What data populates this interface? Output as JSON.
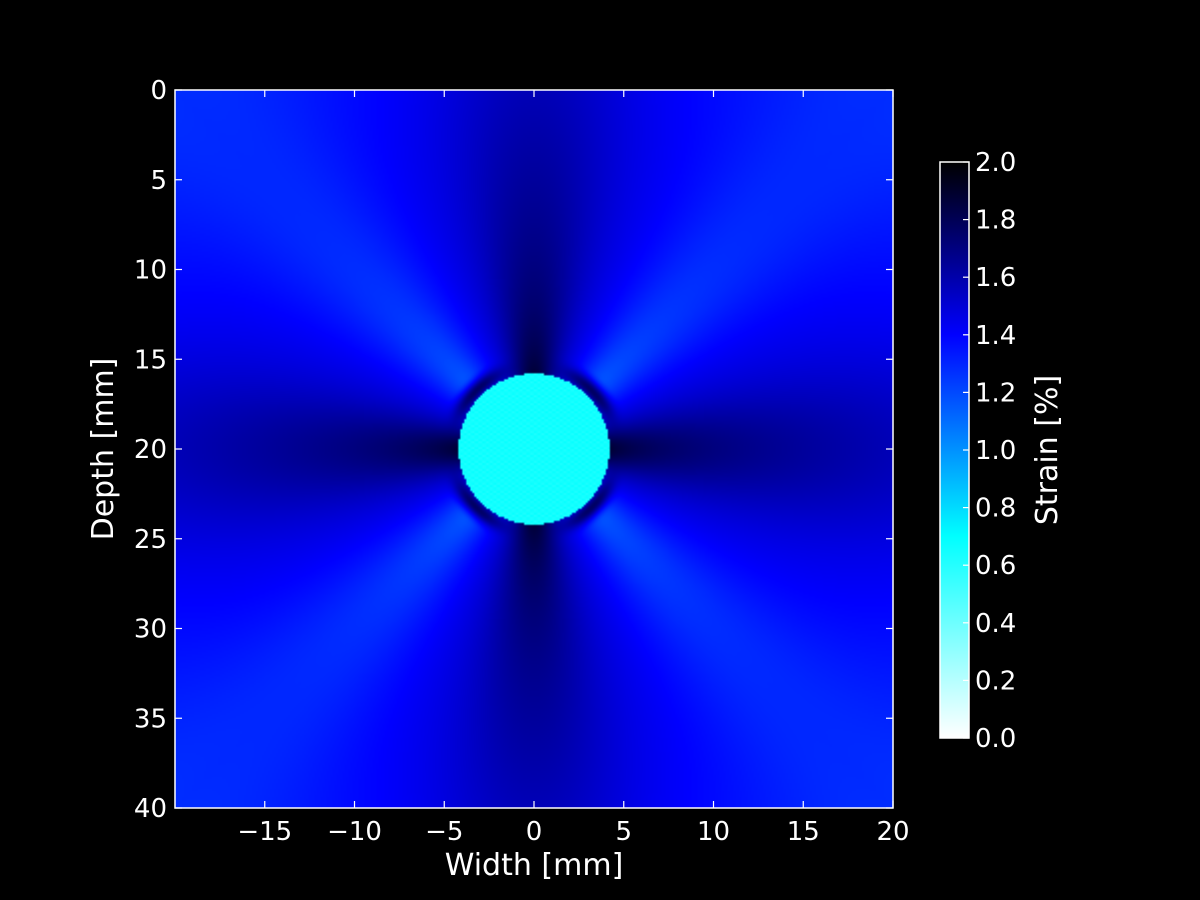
{
  "chart_data": {
    "type": "heatmap",
    "title": "",
    "xlabel": "Width [mm]",
    "ylabel": "Depth [mm]",
    "xlim": [
      -20,
      20
    ],
    "ylim": [
      40,
      0
    ],
    "y_axis_inverted": true,
    "x_ticks": [
      -15,
      -10,
      -5,
      0,
      5,
      10,
      15,
      20
    ],
    "x_tick_labels": [
      "−15",
      "−10",
      "−5",
      "0",
      "5",
      "10",
      "15",
      "20"
    ],
    "y_ticks": [
      0,
      5,
      10,
      15,
      20,
      25,
      30,
      35,
      40
    ],
    "y_tick_labels": [
      "0",
      "5",
      "10",
      "15",
      "20",
      "25",
      "30",
      "35",
      "40"
    ],
    "grid": false,
    "colorbar": {
      "label": "Strain [%]",
      "range": [
        0.0,
        2.0
      ],
      "ticks": [
        0.0,
        0.2,
        0.4,
        0.6,
        0.8,
        1.0,
        1.2,
        1.4,
        1.6,
        1.8,
        2.0
      ],
      "tick_labels": [
        "0.0",
        "0.2",
        "0.4",
        "0.6",
        "0.8",
        "1.0",
        "1.2",
        "1.4",
        "1.6",
        "1.8",
        "2.0"
      ],
      "placement": "right",
      "colormap": [
        {
          "value": 0.0,
          "color": "#ffffff"
        },
        {
          "value": 0.7,
          "color": "#00ffff"
        },
        {
          "value": 1.4,
          "color": "#0000ff"
        },
        {
          "value": 2.0,
          "color": "#000000"
        }
      ]
    },
    "field": {
      "description_values": "strain field in % over width x depth",
      "background_strain": 1.45,
      "inclusion": {
        "center_x": 0,
        "center_y": 20,
        "radius": 4.2,
        "strain": 0.65
      },
      "dark_lobes": [
        {
          "x": 0,
          "y": 13,
          "strain": 1.85
        },
        {
          "x": 0,
          "y": 27.5,
          "strain": 1.85
        },
        {
          "x": -7,
          "y": 20,
          "strain": 1.85
        },
        {
          "x": 7,
          "y": 20,
          "strain": 1.85
        }
      ],
      "light_lobes_direction_deg": [
        45,
        135,
        225,
        315
      ],
      "light_lobe_min_strain": 1.15
    }
  },
  "colors": {
    "background": "#000000",
    "axes": "#ffffff",
    "text": "#ffffff"
  }
}
